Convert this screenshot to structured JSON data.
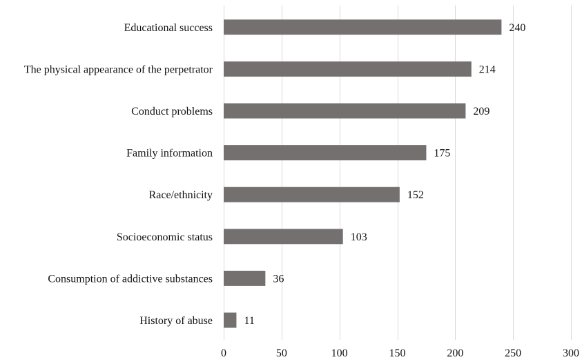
{
  "chart_data": {
    "type": "bar",
    "orientation": "horizontal",
    "categories": [
      "Educational success",
      "The physical appearance of the perpetrator",
      "Conduct problems",
      "Family information",
      "Race/ethnicity",
      "Socioeconomic status",
      "Consumption of addictive substances",
      "History of abuse"
    ],
    "values": [
      240,
      214,
      209,
      175,
      152,
      103,
      36,
      11
    ],
    "xlim": [
      0,
      300
    ],
    "x_ticks": [
      0,
      50,
      100,
      150,
      200,
      250,
      300
    ],
    "grid": "vertical",
    "bar_color": "#757070",
    "title": "",
    "xlabel": "",
    "ylabel": ""
  }
}
